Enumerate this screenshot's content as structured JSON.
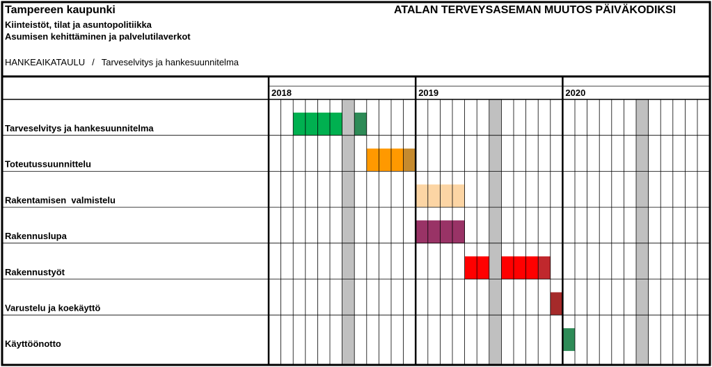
{
  "header": {
    "organization": "Tampereen kaupunki",
    "line2": "Kiinteistöt, tilat ja asuntopolitiikka",
    "line3": "Asumisen kehittäminen ja palvelutilaverkot",
    "title": "ATALAN TERVEYSASEMAN MUUTOS PÄIVÄKODIKSI",
    "breadcrumb_part1": "HANKEAIKATAULU",
    "breadcrumb_separator": "/",
    "breadcrumb_part2": "Tarveselvitys ja hankesuunnitelma"
  },
  "chart_data": {
    "type": "gantt",
    "x_unit": "month",
    "x_range": [
      "2018-01",
      "2020-12"
    ],
    "years": [
      "2018",
      "2019",
      "2020"
    ],
    "highlighted_months": [
      "2018-07",
      "2019-07",
      "2020-07"
    ],
    "tasks": [
      {
        "name": "Tarveselvitys ja hankesuunnitelma",
        "segments": [
          {
            "start": "2018-03",
            "end": "2018-06",
            "color": "#00b050"
          },
          {
            "start": "2018-08",
            "end": "2018-08",
            "color": "#2e8b57"
          }
        ]
      },
      {
        "name": "Toteutussuunnittelu",
        "segments": [
          {
            "start": "2018-09",
            "end": "2018-11",
            "color": "#ff9900"
          },
          {
            "start": "2018-12",
            "end": "2018-12",
            "color": "#c58a2e"
          }
        ]
      },
      {
        "name": "Rakentamisen  valmistelu",
        "segments": [
          {
            "start": "2019-01",
            "end": "2019-04",
            "color": "#fcd5a4"
          }
        ]
      },
      {
        "name": "Rakennuslupa",
        "segments": [
          {
            "start": "2019-01",
            "end": "2019-04",
            "color": "#993366"
          }
        ]
      },
      {
        "name": "Rakennustyöt",
        "segments": [
          {
            "start": "2019-05",
            "end": "2019-06",
            "color": "#ff0000"
          },
          {
            "start": "2019-08",
            "end": "2019-10",
            "color": "#ff0000"
          },
          {
            "start": "2019-11",
            "end": "2019-11",
            "color": "#c0282d"
          }
        ]
      },
      {
        "name": "Varustelu ja koekäyttö",
        "segments": [
          {
            "start": "2019-12",
            "end": "2019-12",
            "color": "#a52a2a"
          }
        ]
      },
      {
        "name": "Käyttöönotto",
        "segments": [
          {
            "start": "2020-01",
            "end": "2020-01",
            "color": "#2e8b57"
          }
        ]
      }
    ]
  },
  "colors": {
    "grid": "#000000",
    "highlight_column": "#c0c0c0",
    "background": "#ffffff"
  }
}
